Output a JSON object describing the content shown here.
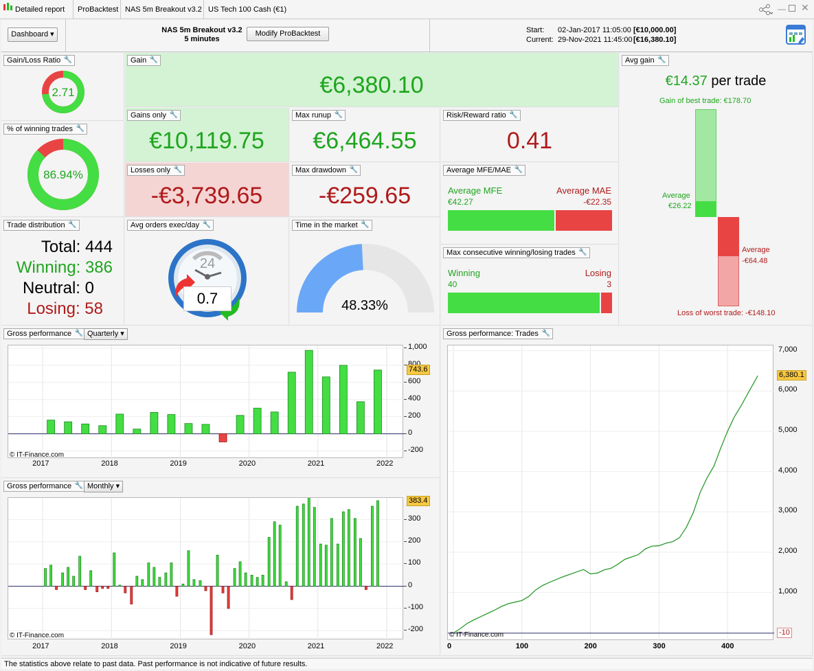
{
  "tabs": [
    "Detailed report",
    "ProBacktest",
    "NAS 5m Breakout v3.2",
    "US Tech 100 Cash (€1)"
  ],
  "header": {
    "dashboard_label": "Dashboard ▾",
    "strategy_name": "NAS 5m Breakout v3.2",
    "timeframe": "5 minutes",
    "modify_label": "Modify ProBacktest",
    "start_label": "Start:",
    "start_value": "02-Jan-2017 11:05:00",
    "start_amount": "[€10,000.00]",
    "current_label": "Current:",
    "current_value": "29-Nov-2021 11:45:00",
    "current_amount": "[€16,380.10]"
  },
  "colors": {
    "green": "#1ea51e",
    "red": "#b01a1a",
    "bar_green": "#44dd44",
    "bar_red": "#e84444",
    "blue": "#6aa8f7"
  },
  "panels": {
    "gain_loss_ratio": {
      "label": "Gain/Loss Ratio",
      "value": "2.71",
      "green_fraction": 0.73
    },
    "pct_winning": {
      "label": "% of winning trades",
      "value": "86.94%",
      "green_fraction": 0.8694
    },
    "trade_distribution": {
      "label": "Trade distribution",
      "total": "Total: 444",
      "winning": "Winning: 386",
      "neutral": "Neutral: 0",
      "losing": "Losing: 58"
    },
    "gain": {
      "label": "Gain",
      "value": "€6,380.10"
    },
    "gains_only": {
      "label": "Gains only",
      "value": "€10,119.75"
    },
    "losses_only": {
      "label": "Losses only",
      "value": "-€3,739.65"
    },
    "max_runup": {
      "label": "Max runup",
      "value": "€6,464.55"
    },
    "max_drawdown": {
      "label": "Max drawdown",
      "value": "-€259.65"
    },
    "risk_reward": {
      "label": "Risk/Reward ratio",
      "value": "0.41"
    },
    "avg_orders": {
      "label": "Avg orders exec/day",
      "value": "0.7",
      "clock_number": "24"
    },
    "time_in_market": {
      "label": "Time in the market",
      "value": "48.33%",
      "fraction": 0.4833
    },
    "avg_mfe_mae": {
      "label": "Average MFE/MAE",
      "mfe_label": "Average MFE",
      "mfe_value": "€42.27",
      "mae_label": "Average MAE",
      "mae_value": "-€22.35",
      "mfe": 42.27,
      "mae": 22.35
    },
    "max_consecutive": {
      "label": "Max consecutive winning/losing trades",
      "winning_label": "Winning",
      "winning_value": "40",
      "losing_label": "Losing",
      "losing_value": "3",
      "winning": 40,
      "losing": 3
    },
    "avg_gain": {
      "label": "Avg gain",
      "value": "€14.37",
      "suffix": "per trade",
      "best_label": "Gain of best trade: €178.70",
      "avg_win_label": "Average",
      "avg_win_value": "€26.22",
      "avg_loss_label": "Average",
      "avg_loss_value": "-€64.48",
      "worst_label": "Loss of worst trade: -€148.10",
      "best": 178.7,
      "avg_win": 26.22,
      "avg_loss": 64.48,
      "worst": 148.1
    }
  },
  "quarterly": {
    "label": "Gross performance",
    "period": "Quarterly ▾",
    "watermark": "© IT-Finance.com",
    "last_value_label": "743.6",
    "x_ticks": [
      "2017",
      "2018",
      "2019",
      "2020",
      "2021",
      "2022"
    ],
    "y_ticks": [
      "1,000",
      "800",
      "600",
      "400",
      "200",
      "0",
      "-200"
    ]
  },
  "monthly": {
    "label": "Gross performance",
    "period": "Monthly ▾",
    "watermark": "© IT-Finance.com",
    "last_value_label": "383.4",
    "x_ticks": [
      "2017",
      "2018",
      "2019",
      "2020",
      "2021",
      "2022"
    ],
    "y_ticks": [
      "300",
      "200",
      "100",
      "0",
      "-100",
      "-200"
    ]
  },
  "trades_chart": {
    "label": "Gross performance: Trades",
    "watermark": "© IT-Finance.com",
    "last_value_label": "6,380.1",
    "baseline_label": "-10",
    "x_ticks": [
      "0",
      "100",
      "200",
      "300",
      "400"
    ],
    "y_ticks": [
      "7,000",
      "6,000",
      "5,000",
      "4,000",
      "3,000",
      "2,000",
      "1,000"
    ]
  },
  "chart_data": [
    {
      "type": "bar",
      "title": "Gross performance",
      "period": "Quarterly",
      "x": [
        2017.12,
        2017.37,
        2017.62,
        2017.87,
        2018.12,
        2018.37,
        2018.62,
        2018.87,
        2019.12,
        2019.37,
        2019.62,
        2019.87,
        2020.12,
        2020.37,
        2020.62,
        2020.87,
        2021.12,
        2021.37,
        2021.62,
        2021.87
      ],
      "values": [
        160,
        140,
        115,
        95,
        230,
        55,
        250,
        225,
        120,
        110,
        -95,
        215,
        300,
        255,
        720,
        975,
        665,
        800,
        375,
        745
      ],
      "xlim": [
        2016.5,
        2022.25
      ],
      "ylim": [
        -260,
        1000
      ],
      "last_value": 743.6
    },
    {
      "type": "bar",
      "title": "Gross performance",
      "period": "Monthly",
      "x": [
        2017.04,
        2017.12,
        2017.2,
        2017.29,
        2017.37,
        2017.45,
        2017.54,
        2017.62,
        2017.7,
        2017.79,
        2017.87,
        2017.95,
        2018.04,
        2018.12,
        2018.2,
        2018.29,
        2018.37,
        2018.45,
        2018.54,
        2018.62,
        2018.7,
        2018.79,
        2018.87,
        2018.95,
        2019.04,
        2019.12,
        2019.2,
        2019.29,
        2019.37,
        2019.45,
        2019.54,
        2019.62,
        2019.7,
        2019.79,
        2019.87,
        2019.95,
        2020.04,
        2020.12,
        2020.2,
        2020.29,
        2020.37,
        2020.45,
        2020.54,
        2020.62,
        2020.7,
        2020.79,
        2020.87,
        2020.95,
        2021.04,
        2021.12,
        2021.2,
        2021.29,
        2021.37,
        2021.45,
        2021.54,
        2021.62,
        2021.7,
        2021.79,
        2021.87
      ],
      "values": [
        80,
        95,
        -15,
        60,
        85,
        45,
        135,
        -15,
        70,
        -25,
        -10,
        -10,
        150,
        5,
        -30,
        -80,
        45,
        30,
        105,
        85,
        40,
        60,
        105,
        -45,
        10,
        160,
        30,
        25,
        -20,
        -218,
        140,
        -30,
        -100,
        80,
        110,
        60,
        50,
        40,
        50,
        220,
        290,
        275,
        20,
        -60,
        360,
        370,
        410,
        355,
        190,
        185,
        305,
        190,
        335,
        345,
        305,
        215,
        -15,
        360,
        385
      ],
      "xlim": [
        2016.5,
        2022.25
      ],
      "ylim": [
        -230,
        385
      ],
      "last_value": 383.4
    },
    {
      "type": "line",
      "title": "Gross performance: Trades",
      "x": [
        0,
        10,
        20,
        30,
        40,
        50,
        60,
        70,
        80,
        90,
        100,
        110,
        120,
        130,
        140,
        150,
        160,
        170,
        180,
        190,
        200,
        210,
        220,
        230,
        240,
        250,
        260,
        270,
        280,
        290,
        300,
        310,
        320,
        330,
        340,
        350,
        360,
        370,
        380,
        390,
        400,
        410,
        420,
        430,
        440,
        444
      ],
      "y": [
        -10,
        100,
        230,
        320,
        400,
        480,
        560,
        650,
        720,
        760,
        800,
        900,
        1060,
        1170,
        1250,
        1320,
        1390,
        1450,
        1510,
        1570,
        1460,
        1480,
        1560,
        1600,
        1700,
        1820,
        1880,
        1940,
        2080,
        2150,
        2160,
        2220,
        2260,
        2360,
        2620,
        2980,
        3480,
        3840,
        4130,
        4580,
        5000,
        5360,
        5640,
        5950,
        6250,
        6380
      ],
      "xlim": [
        -8,
        468
      ],
      "ylim": [
        -200,
        7130
      ],
      "last_value": 6380.1,
      "baseline": -10
    }
  ]
}
